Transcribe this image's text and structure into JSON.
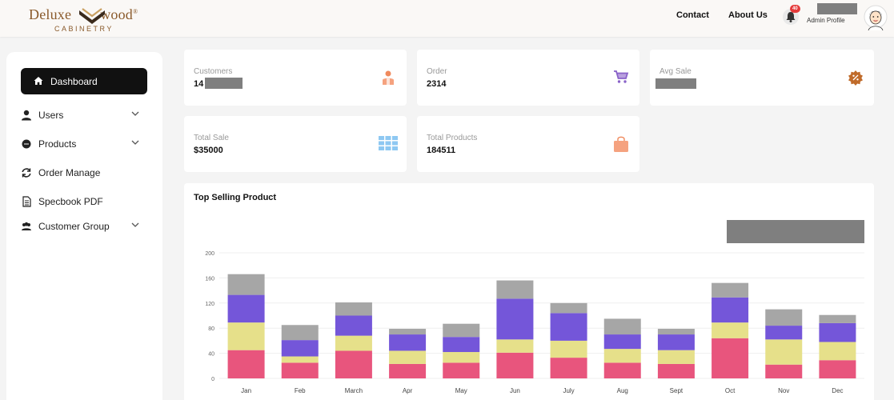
{
  "brand": {
    "name_left": "Deluxe",
    "name_right": "wood",
    "registered": "®",
    "tagline": "CABINETRY"
  },
  "header": {
    "contact": "Contact",
    "about": "About Us",
    "notification_count": "40",
    "profile_label": "Admin Profile"
  },
  "sidebar": {
    "items": [
      {
        "label": "Dashboard",
        "icon": "home-icon",
        "active": true
      },
      {
        "label": "Users",
        "icon": "user-icon",
        "has_submenu": true
      },
      {
        "label": "Products",
        "icon": "product-icon",
        "has_submenu": true
      },
      {
        "label": "Order Manage",
        "icon": "refresh-icon"
      },
      {
        "label": "Specbook PDF",
        "icon": "document-icon"
      },
      {
        "label": "Customer Group",
        "icon": "group-icon",
        "has_submenu": true
      }
    ]
  },
  "stats": {
    "customers": {
      "title": "Customers",
      "value": "14",
      "icon": "person-icon",
      "color": "#f08a5d"
    },
    "order": {
      "title": "Order",
      "value": "2314",
      "icon": "cart-icon",
      "color": "#8a63c9"
    },
    "avg_sale": {
      "title": "Avg Sale",
      "value": "",
      "icon": "badge-icon",
      "color": "#c06b2a"
    },
    "total_sale": {
      "title": "Total Sale",
      "value": "$35000",
      "icon": "grid-icon",
      "color": "#8ec8f2"
    },
    "total_products": {
      "title": "Total Products",
      "value": "184511",
      "icon": "bag-icon",
      "color": "#f5a27f"
    }
  },
  "chart_panel": {
    "title": "Top Selling Product"
  },
  "chart_data": {
    "type": "bar",
    "stacked": true,
    "categories": [
      "Jan",
      "Feb",
      "March",
      "Apr",
      "May",
      "Jun",
      "July",
      "Aug",
      "Sept",
      "Oct",
      "Nov",
      "Dec"
    ],
    "ylim": [
      0,
      200
    ],
    "yticks": [
      0,
      40,
      80,
      120,
      160,
      200
    ],
    "grid": true,
    "series": [
      {
        "color": "#e8557d",
        "values": [
          45,
          25,
          44,
          23,
          25,
          41,
          33,
          25,
          23,
          64,
          22,
          29
        ]
      },
      {
        "color": "#e6e08a",
        "values": [
          44,
          10,
          24,
          21,
          17,
          21,
          27,
          22,
          22,
          25,
          40,
          29
        ]
      },
      {
        "color": "#7456d9",
        "values": [
          44,
          26,
          32,
          26,
          24,
          65,
          44,
          23,
          25,
          40,
          22,
          30
        ]
      },
      {
        "color": "#a6a6a6",
        "values": [
          33,
          24,
          21,
          9,
          21,
          29,
          16,
          25,
          9,
          23,
          26,
          13
        ]
      }
    ]
  }
}
